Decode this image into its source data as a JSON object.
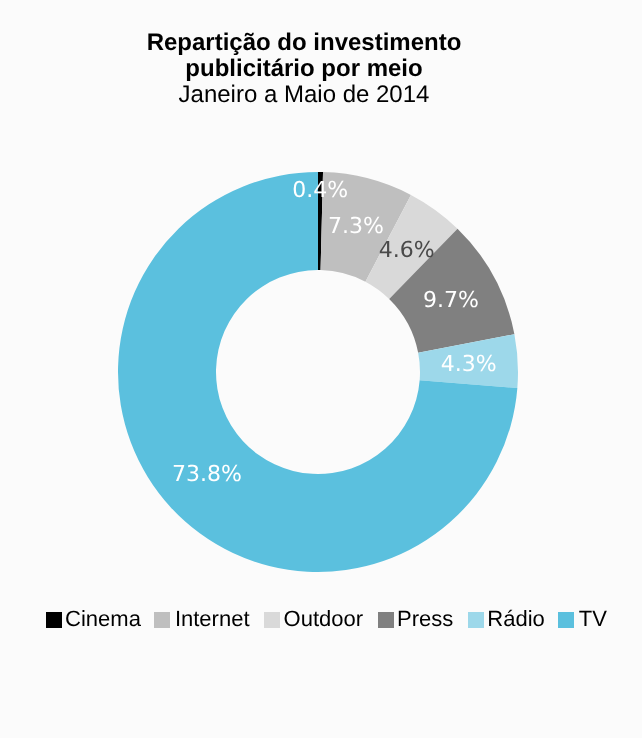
{
  "chart_data": {
    "type": "donut",
    "title": "Repartição do investimento publicitário por meio",
    "subtitle": "Janeiro a Maio de 2014",
    "categories": [
      "Cinema",
      "Internet",
      "Outdoor",
      "Press",
      "Rádio",
      "TV"
    ],
    "values": [
      0.4,
      7.3,
      4.6,
      9.7,
      4.3,
      73.8
    ],
    "colors": [
      "#000000",
      "#bfbfbf",
      "#d9d9d9",
      "#808080",
      "#9dd8ea",
      "#5bc0de"
    ],
    "value_labels": [
      "0.4%",
      "7.3%",
      "4.6%",
      "9.7%",
      "4.3%",
      "73.8%"
    ],
    "legend": "bottom"
  }
}
